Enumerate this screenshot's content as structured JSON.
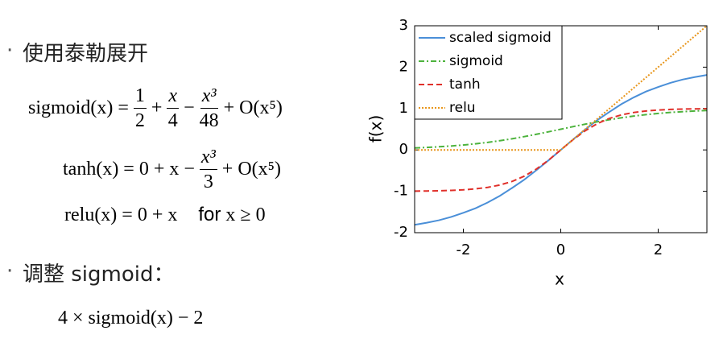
{
  "slide": {
    "bullet1": "使用泰勒展开",
    "formula1": {
      "lhs": "sigmoid(x) =",
      "f1": [
        "1",
        "2"
      ],
      "op1": "+",
      "f2": [
        "x",
        "4"
      ],
      "op2": "−",
      "f3": [
        "x³",
        "48"
      ],
      "rest": "+ O(x⁵)"
    },
    "formula2": {
      "lhs": "tanh(x) = 0 + x −",
      "f1": [
        "x³",
        "3"
      ],
      "rest": "+ O(x⁵)"
    },
    "formula3": {
      "lhs": "relu(x) = 0 + x",
      "cond_word": "for",
      "cond": "x ≥ 0"
    },
    "bullet2": "调整 sigmoid：",
    "formula4": "4 × sigmoid(x) − 2"
  },
  "chart_data": {
    "type": "line",
    "xlabel": "x",
    "ylabel": "f(x)",
    "x": [
      -3,
      -2.75,
      -2.5,
      -2.25,
      -2,
      -1.75,
      -1.5,
      -1.25,
      -1,
      -0.75,
      -0.5,
      -0.25,
      0,
      0.25,
      0.5,
      0.75,
      1,
      1.25,
      1.5,
      1.75,
      2,
      2.25,
      2.5,
      2.75,
      3
    ],
    "series": [
      {
        "name": "scaled sigmoid",
        "color": "#4a8fd8",
        "style": "solid",
        "values": [
          -1.81,
          -1.76,
          -1.7,
          -1.62,
          -1.52,
          -1.41,
          -1.27,
          -1.11,
          -0.92,
          -0.72,
          -0.49,
          -0.25,
          0,
          0.25,
          0.49,
          0.72,
          0.92,
          1.11,
          1.27,
          1.41,
          1.52,
          1.62,
          1.7,
          1.76,
          1.81
        ]
      },
      {
        "name": "sigmoid",
        "color": "#4db33d",
        "style": "dashdot",
        "values": [
          0.047,
          0.06,
          0.076,
          0.095,
          0.119,
          0.148,
          0.182,
          0.223,
          0.269,
          0.321,
          0.378,
          0.438,
          0.5,
          0.562,
          0.622,
          0.679,
          0.731,
          0.777,
          0.818,
          0.852,
          0.881,
          0.905,
          0.924,
          0.94,
          0.953
        ]
      },
      {
        "name": "tanh",
        "color": "#e0302a",
        "style": "dashed",
        "values": [
          -0.995,
          -0.992,
          -0.987,
          -0.978,
          -0.964,
          -0.941,
          -0.905,
          -0.848,
          -0.762,
          -0.635,
          -0.462,
          -0.245,
          0,
          0.245,
          0.462,
          0.635,
          0.762,
          0.848,
          0.905,
          0.941,
          0.964,
          0.978,
          0.987,
          0.992,
          0.995
        ]
      },
      {
        "name": "relu",
        "color": "#e8961c",
        "style": "dotted",
        "values": [
          0,
          0,
          0,
          0,
          0,
          0,
          0,
          0,
          0,
          0,
          0,
          0,
          0,
          0.25,
          0.5,
          0.75,
          1,
          1.25,
          1.5,
          1.75,
          2,
          2.25,
          2.5,
          2.75,
          3
        ]
      }
    ],
    "xlim": [
      -3,
      3
    ],
    "xticks": [
      -2,
      0,
      2
    ],
    "ylim": [
      -2,
      3
    ],
    "yticks": [
      -2,
      -1,
      0,
      1,
      2,
      3
    ],
    "legend": "upper left",
    "grid": false
  }
}
